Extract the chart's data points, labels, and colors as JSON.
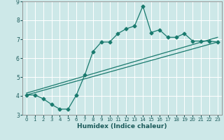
{
  "title": "",
  "xlabel": "Humidex (Indice chaleur)",
  "xlim": [
    -0.5,
    23.5
  ],
  "ylim": [
    3,
    9
  ],
  "yticks": [
    3,
    4,
    5,
    6,
    7,
    8,
    9
  ],
  "xticks": [
    0,
    1,
    2,
    3,
    4,
    5,
    6,
    7,
    8,
    9,
    10,
    11,
    12,
    13,
    14,
    15,
    16,
    17,
    18,
    19,
    20,
    21,
    22,
    23
  ],
  "bg_color": "#cde8e8",
  "line_color": "#1a7a6e",
  "line1_x": [
    0,
    1,
    2,
    3,
    4,
    5,
    6,
    7,
    8,
    9,
    10,
    11,
    12,
    13,
    14,
    15,
    16,
    17,
    18,
    19,
    20,
    21,
    22,
    23
  ],
  "line1_y": [
    4.05,
    4.05,
    3.85,
    3.55,
    3.3,
    3.3,
    4.05,
    5.1,
    6.35,
    6.85,
    6.85,
    7.3,
    7.55,
    7.7,
    8.75,
    7.35,
    7.5,
    7.1,
    7.1,
    7.3,
    6.9,
    6.9,
    6.9,
    6.85
  ],
  "line2_y_start": 4.05,
  "line2_y_end": 6.85,
  "line3_y_start": 4.15,
  "line3_y_end": 7.1,
  "grid_color": "#ffffff",
  "tick_color": "#1a5a5a",
  "xlabel_color": "#1a5a5a"
}
